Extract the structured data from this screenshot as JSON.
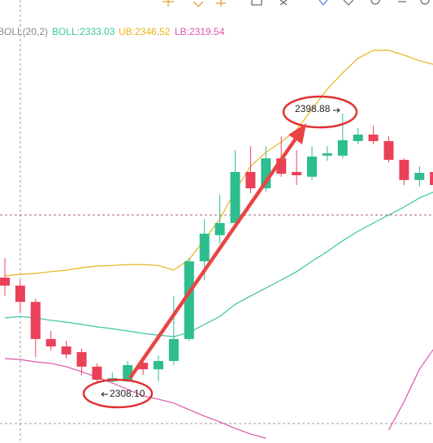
{
  "chart_data": {
    "type": "candlestick",
    "indicator": "BOLL(20,2)",
    "up_color": "#2dbd8e",
    "down_color": "#eb4059",
    "ylim": [
      2287.86,
      2437.16
    ],
    "open": [
      2343.6,
      2340.9,
      2335.4,
      2322.9,
      2320.4,
      2318.5,
      2313.6,
      2308.6,
      2308.6,
      2314.9,
      2312.7,
      2315.5,
      2322.9,
      2349.1,
      2357.9,
      2362.0,
      2379.2,
      2373.7,
      2383.8,
      2379.2,
      2377.6,
      2384.7,
      2384.7,
      2389.6,
      2391.8,
      2389.6,
      2383.3,
      2376.5,
      2379.2
    ],
    "high": [
      2350.2,
      2342.8,
      2336.5,
      2325.6,
      2322.3,
      2319.6,
      2314.7,
      2311.6,
      2315.5,
      2316.8,
      2317.4,
      2337.4,
      2350.2,
      2363.3,
      2371.5,
      2386.6,
      2387.9,
      2387.9,
      2391.2,
      2386.6,
      2387.9,
      2387.9,
      2398.88,
      2394.0,
      2394.8,
      2391.2,
      2383.8,
      2381.1,
      2381.1
    ],
    "low": [
      2337.4,
      2331.9,
      2316.8,
      2319.0,
      2316.3,
      2310.8,
      2308.1,
      2308.4,
      2308.5,
      2310.8,
      2308.6,
      2314.1,
      2322.3,
      2342.8,
      2355.1,
      2361.1,
      2372.1,
      2372.6,
      2377.6,
      2374.8,
      2376.5,
      2383.0,
      2383.8,
      2388.5,
      2388.5,
      2382.5,
      2374.8,
      2374.3,
      2373.7
    ],
    "close": [
      2340.9,
      2335.4,
      2322.9,
      2320.4,
      2317.7,
      2313.6,
      2309.2,
      2309.7,
      2314.1,
      2312.7,
      2315.5,
      2322.9,
      2349.1,
      2358.4,
      2362.0,
      2379.2,
      2373.7,
      2383.8,
      2378.6,
      2378.1,
      2384.4,
      2385.5,
      2389.9,
      2391.8,
      2389.6,
      2383.3,
      2376.5,
      2378.9,
      2374.8
    ],
    "series": [
      {
        "name": "BOLL:2333.03",
        "color": "#3cc4a0",
        "values": [
          2330.0,
          2330.5,
          2330.0,
          2329.2,
          2328.6,
          2327.8,
          2327.0,
          2326.4,
          2325.6,
          2324.8,
          2324.2,
          2323.7,
          2325.1,
          2327.8,
          2330.5,
          2334.6,
          2337.4,
          2340.1,
          2342.8,
          2345.6,
          2349.1,
          2352.4,
          2356.0,
          2359.2,
          2362.0,
          2364.7,
          2367.4,
          2370.4,
          2372.6
        ]
      },
      {
        "name": "UB:2346.52",
        "color": "#e8b21c",
        "values": [
          2344.2,
          2344.7,
          2345.0,
          2345.6,
          2346.1,
          2346.9,
          2347.5,
          2347.7,
          2348.0,
          2348.0,
          2347.7,
          2346.1,
          2349.7,
          2356.5,
          2363.3,
          2372.9,
          2381.1,
          2385.8,
          2389.3,
          2393.4,
          2400.3,
          2407.1,
          2412.6,
          2417.5,
          2420.2,
          2420.2,
          2418.6,
          2416.7,
          2415.3
        ]
      },
      {
        "name": "LB:2319.54",
        "color": "#dc55a8",
        "values": [
          2316.3,
          2316.0,
          2315.2,
          2314.7,
          2313.6,
          2311.9,
          2310.0,
          2308.1,
          2305.9,
          2303.7,
          2302.6,
          2301.3,
          2299.1,
          2296.9,
          2295.0,
          2292.8,
          2290.9,
          2289.5,
          null,
          null,
          null,
          null,
          null,
          null,
          null,
          2292.2,
          2301.8,
          2312.7,
          2320.1
        ]
      }
    ],
    "annotations": [
      "2398.88",
      "2308.10"
    ]
  }
}
